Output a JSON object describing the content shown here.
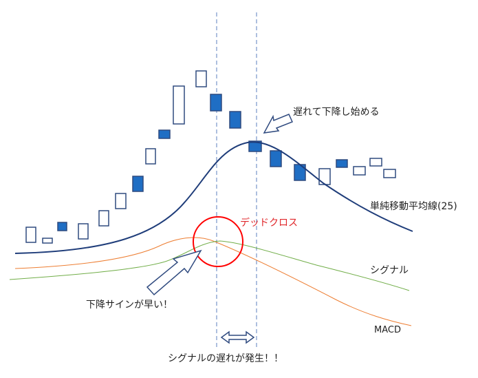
{
  "labels": {
    "lag_note": "遅れて下降し始める",
    "sma": "単純移動平均線(25)",
    "dead_cross": "デッドクロス",
    "signal": "シグナル",
    "early_sell": "下降サインが早い！",
    "macd": "MACD",
    "signal_delay": "シグナルの遅れが発生！！"
  },
  "colors": {
    "sma": "#1f3d7a",
    "macd": "#ed7d31",
    "signal": "#70ad47",
    "dead_cross": "#ff0000",
    "bearish_fill": "#1f6ec4",
    "candle_outline": "#2f4a7f",
    "guide_line": "#5b7fbf"
  }
}
